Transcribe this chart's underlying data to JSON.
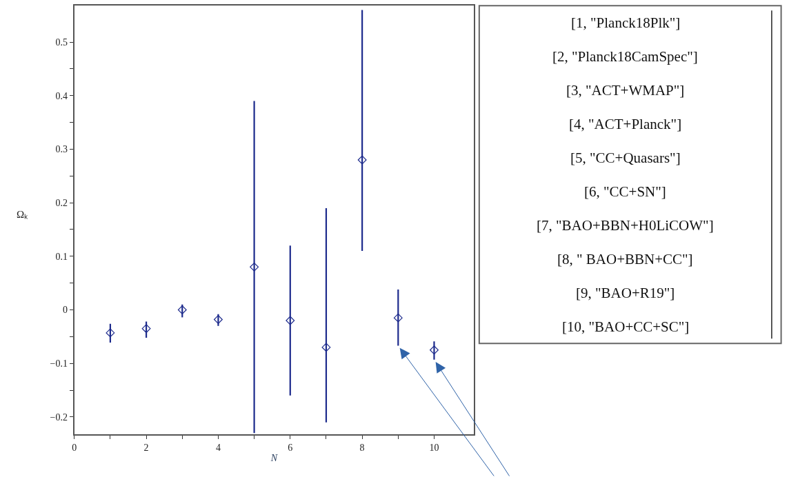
{
  "chart_data": {
    "type": "scatter",
    "xlabel": "N",
    "ylabel": "Ωₖ",
    "x": [
      1,
      2,
      3,
      4,
      5,
      6,
      7,
      8,
      9,
      10
    ],
    "color": "#1c2a8c",
    "values": [
      -0.043,
      -0.035,
      0.0,
      -0.018,
      0.08,
      -0.02,
      -0.07,
      0.28,
      -0.015,
      -0.075
    ],
    "errors": [
      [
        -0.061,
        -0.026
      ],
      [
        -0.052,
        -0.022
      ],
      [
        -0.014,
        0.01
      ],
      [
        -0.03,
        -0.008
      ],
      [
        -0.23,
        0.39
      ],
      [
        -0.16,
        0.12
      ],
      [
        -0.21,
        0.19
      ],
      [
        0.11,
        0.56
      ],
      [
        -0.067,
        0.038
      ],
      [
        -0.093,
        -0.059
      ]
    ],
    "marker": "diamond",
    "xlim": [
      0,
      11.1
    ],
    "ylim": [
      -0.232,
      0.568
    ],
    "xticks": [
      0,
      {
        "value": 1,
        "label": null
      },
      2,
      {
        "value": 3,
        "label": null
      },
      4,
      {
        "value": 5,
        "label": null
      },
      6,
      {
        "value": 7,
        "label": null
      },
      8,
      {
        "value": 9,
        "label": null
      },
      10
    ],
    "yticks": [
      {
        "value": -0.2,
        "label": "−0.2"
      },
      {
        "value": -0.15,
        "label": null
      },
      {
        "value": -0.1,
        "label": "−0.1"
      },
      {
        "value": -0.05,
        "label": null
      },
      0,
      {
        "value": 0.05,
        "label": null
      },
      0.1,
      {
        "value": 0.15,
        "label": null
      },
      0.2,
      {
        "value": 0.25,
        "label": null
      },
      0.3,
      {
        "value": 0.35,
        "label": null
      },
      0.4,
      {
        "value": 0.45,
        "label": null
      },
      0.5
    ],
    "annotations": [
      "[1, \"Planck18Plk\"]",
      "[2, \"Planck18CamSpec\"]",
      "[3, \"ACT+WMAP\"]",
      "[4, \"ACT+Planck\"]",
      "[5, \"CC+Quasars\"]",
      "[6, \"CC+SN\"]",
      "[7, \"BAO+BBN+H0LiCOW\"]",
      "[8, \" BAO+BBN+CC\"]",
      "[9, \"BAO+R19\"]",
      "[10, \"BAO+CC+SC\"]"
    ]
  }
}
